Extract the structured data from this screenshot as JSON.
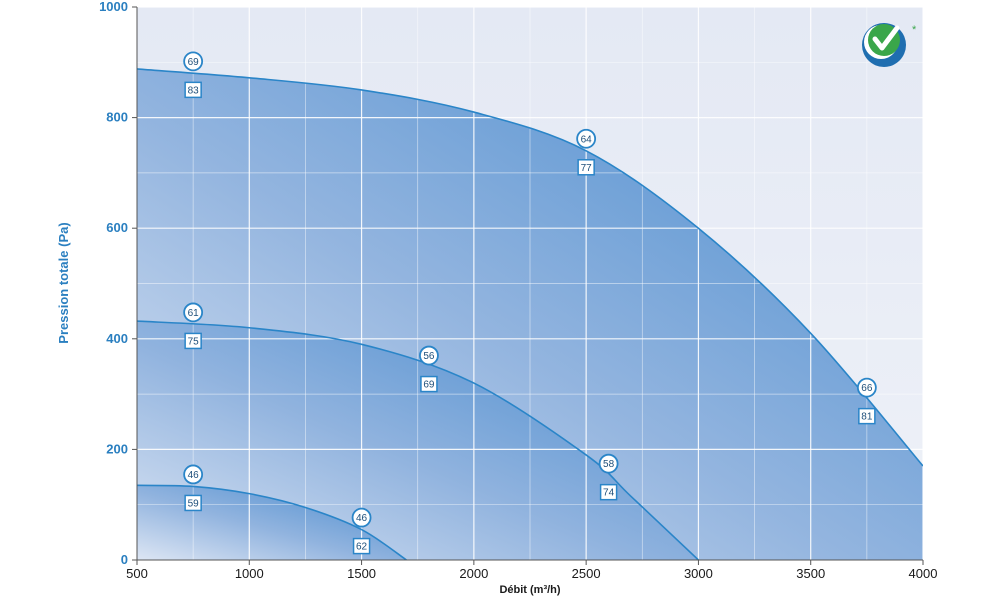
{
  "chart_data": {
    "type": "area",
    "xlabel": "Débit (m³/h)",
    "ylabel": "Pression totale (Pa)",
    "xlim": [
      500,
      4000
    ],
    "ylim": [
      0,
      1000
    ],
    "xticks": [
      500,
      1000,
      1500,
      2000,
      2500,
      3000,
      3500,
      4000
    ],
    "yticks": [
      0,
      200,
      400,
      600,
      800,
      1000
    ],
    "grid": true,
    "colors": {
      "axis_text": "#2a7fc0",
      "curve": "#2a85c8",
      "fill_dark": "#4a8fd0",
      "fill_light": "#d6e2f3",
      "background": "#e8edf6",
      "grid": "#ffffff"
    },
    "series": [
      {
        "curve": [
          [
            500,
            888
          ],
          [
            1000,
            872
          ],
          [
            1500,
            850
          ],
          [
            2000,
            810
          ],
          [
            2500,
            740
          ],
          [
            3000,
            600
          ],
          [
            3500,
            410
          ],
          [
            4000,
            170
          ]
        ],
        "annotations": [
          {
            "x": 750,
            "circle": "69",
            "square": "83"
          },
          {
            "x": 2500,
            "circle": "64",
            "square": "77"
          },
          {
            "x": 3750,
            "circle": "66",
            "square": "81"
          }
        ]
      },
      {
        "curve": [
          [
            500,
            432
          ],
          [
            1000,
            420
          ],
          [
            1500,
            390
          ],
          [
            2000,
            320
          ],
          [
            2500,
            190
          ],
          [
            2700,
            115
          ],
          [
            3000,
            0
          ]
        ],
        "annotations": [
          {
            "x": 750,
            "circle": "61",
            "square": "75"
          },
          {
            "x": 1800,
            "circle": "56",
            "square": "69"
          },
          {
            "x": 2600,
            "circle": "58",
            "square": "74"
          }
        ]
      },
      {
        "curve": [
          [
            500,
            135
          ],
          [
            750,
            133
          ],
          [
            1000,
            120
          ],
          [
            1250,
            95
          ],
          [
            1500,
            55
          ],
          [
            1700,
            0
          ]
        ],
        "annotations": [
          {
            "x": 750,
            "circle": "46",
            "square": "59"
          },
          {
            "x": 1500,
            "circle": "46",
            "square": "62"
          }
        ]
      }
    ]
  },
  "logo": {
    "icon": "green-check-badge-icon",
    "mark": "*"
  }
}
